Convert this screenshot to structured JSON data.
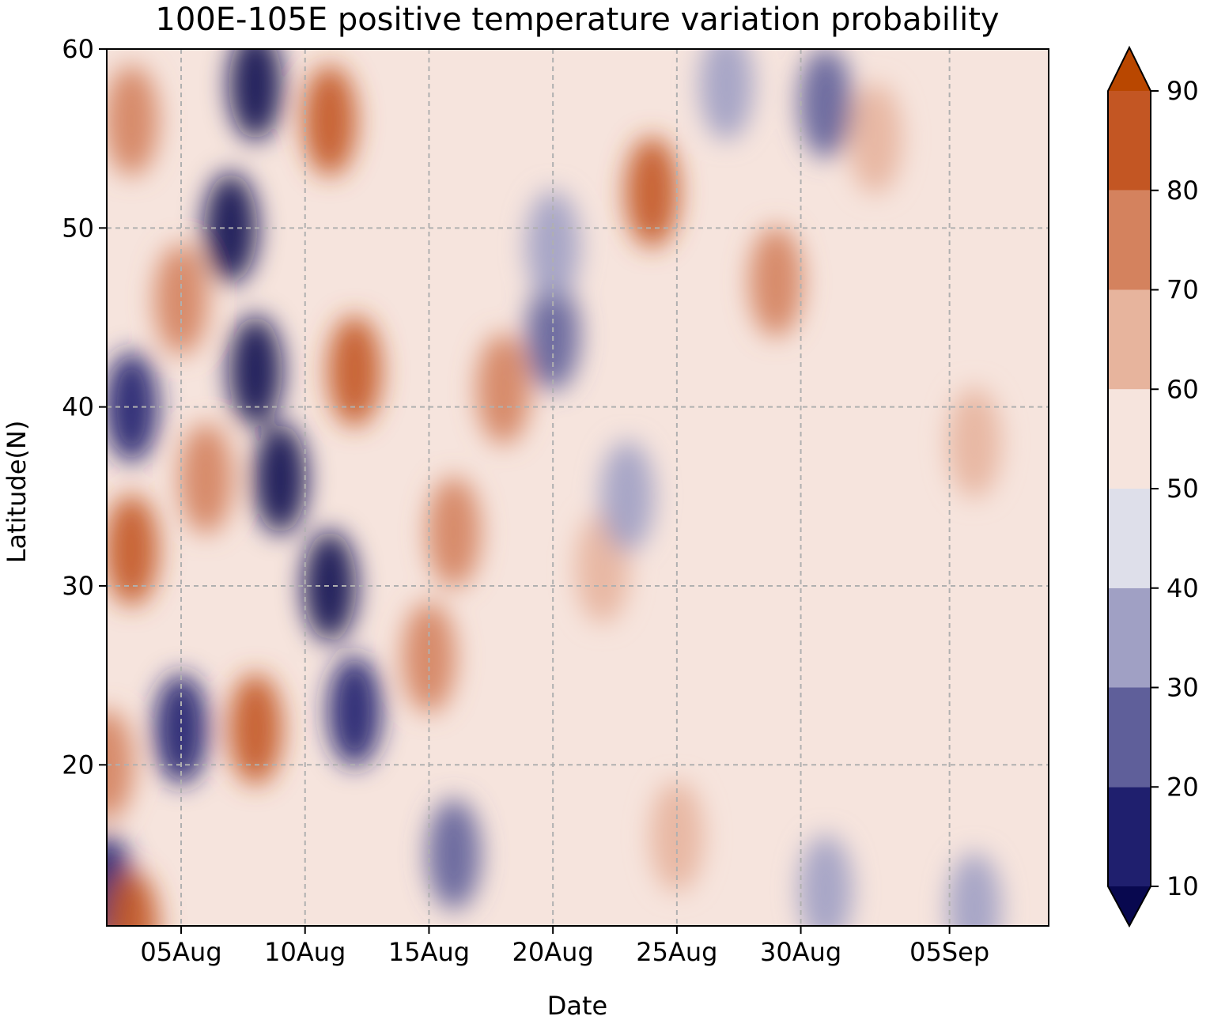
{
  "chart_data": {
    "type": "heatmap",
    "subtype": "filled-contour",
    "title": "100E-105E positive temperature variation probability",
    "xlabel": "Date",
    "ylabel": "Latitude(N)",
    "x_ticks": [
      "05Aug",
      "10Aug",
      "15Aug",
      "20Aug",
      "25Aug",
      "30Aug",
      "05Sep"
    ],
    "x_tick_dates": [
      "2000-08-05",
      "2000-08-10",
      "2000-08-15",
      "2000-08-20",
      "2000-08-25",
      "2000-08-30",
      "2000-09-05"
    ],
    "x_range": [
      "2000-08-02",
      "2000-09-09"
    ],
    "y_ticks": [
      20,
      30,
      40,
      50,
      60
    ],
    "ylim": [
      11,
      60
    ],
    "grid": true,
    "colorbar": {
      "levels": [
        10,
        20,
        30,
        40,
        50,
        60,
        70,
        80,
        90
      ],
      "tick_labels": [
        "10",
        "20",
        "30",
        "40",
        "50",
        "60",
        "70",
        "80",
        "90"
      ],
      "extend": "both",
      "colors": [
        "#08084f",
        "#1f1f6e",
        "#5f5f9a",
        "#a0a0c4",
        "#dedfea",
        "#f6e4dd",
        "#e7b49d",
        "#d4825e",
        "#c35623",
        "#b94700"
      ]
    },
    "features": [
      {
        "date": "2000-08-08",
        "lat": 58,
        "value": 5
      },
      {
        "date": "2000-08-07",
        "lat": 50,
        "value": 5
      },
      {
        "date": "2000-08-08",
        "lat": 42,
        "value": 5
      },
      {
        "date": "2000-08-09",
        "lat": 36,
        "value": 5
      },
      {
        "date": "2000-08-11",
        "lat": 30,
        "value": 5
      },
      {
        "date": "2000-08-12",
        "lat": 23,
        "value": 15
      },
      {
        "date": "2000-08-03",
        "lat": 40,
        "value": 15
      },
      {
        "date": "2000-08-05",
        "lat": 22,
        "value": 15
      },
      {
        "date": "2000-08-02",
        "lat": 13,
        "value": 15
      },
      {
        "date": "2000-08-11",
        "lat": 56,
        "value": 85
      },
      {
        "date": "2000-08-12",
        "lat": 42,
        "value": 85
      },
      {
        "date": "2000-08-08",
        "lat": 22,
        "value": 85
      },
      {
        "date": "2000-08-03",
        "lat": 32,
        "value": 85
      },
      {
        "date": "2000-08-03",
        "lat": 56,
        "value": 75
      },
      {
        "date": "2000-08-05",
        "lat": 46,
        "value": 75
      },
      {
        "date": "2000-08-02",
        "lat": 20,
        "value": 75
      },
      {
        "date": "2000-08-03",
        "lat": 11,
        "value": 85
      },
      {
        "date": "2000-08-06",
        "lat": 36,
        "value": 75
      },
      {
        "date": "2000-08-16",
        "lat": 33,
        "value": 75
      },
      {
        "date": "2000-08-18",
        "lat": 41,
        "value": 75
      },
      {
        "date": "2000-08-24",
        "lat": 52,
        "value": 80
      },
      {
        "date": "2000-08-29",
        "lat": 47,
        "value": 70
      },
      {
        "date": "2000-08-15",
        "lat": 26,
        "value": 70
      },
      {
        "date": "2000-08-20",
        "lat": 44,
        "value": 20
      },
      {
        "date": "2000-08-20",
        "lat": 49,
        "value": 35
      },
      {
        "date": "2000-09-02",
        "lat": 55,
        "value": 65
      },
      {
        "date": "2000-08-22",
        "lat": 31,
        "value": 65
      },
      {
        "date": "2000-08-25",
        "lat": 16,
        "value": 62
      },
      {
        "date": "2000-08-16",
        "lat": 15,
        "value": 25
      },
      {
        "date": "2000-08-31",
        "lat": 13,
        "value": 32
      },
      {
        "date": "2000-09-06",
        "lat": 12,
        "value": 30
      },
      {
        "date": "2000-09-06",
        "lat": 38,
        "value": 62
      },
      {
        "date": "2000-08-27",
        "lat": 58,
        "value": 35
      },
      {
        "date": "2000-08-31",
        "lat": 57,
        "value": 28
      },
      {
        "date": "2000-08-23",
        "lat": 35,
        "value": 30
      }
    ]
  }
}
